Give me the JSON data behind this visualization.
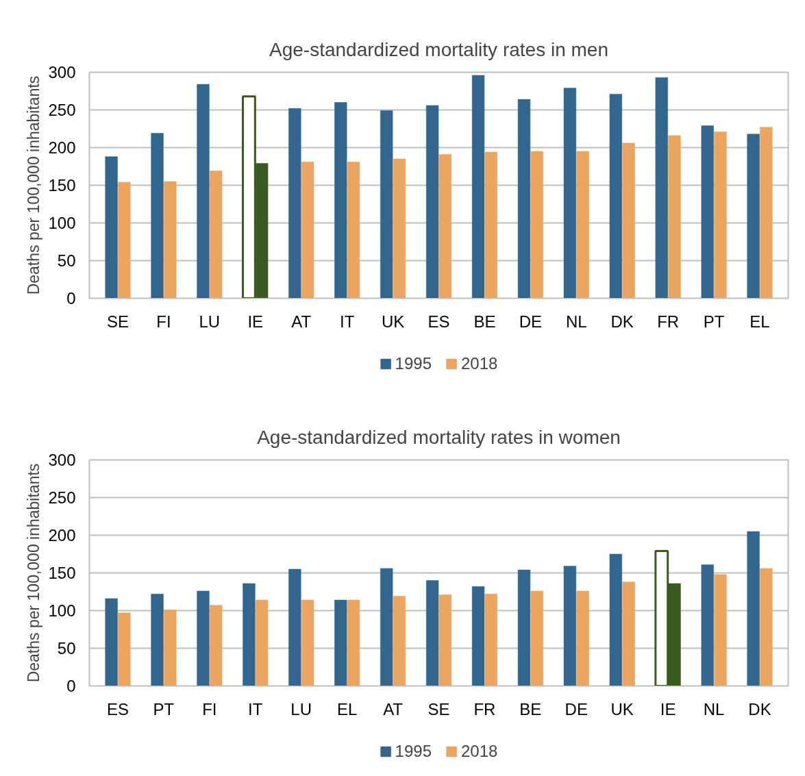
{
  "chart_data": [
    {
      "type": "bar",
      "title": "Age-standardized mortality rates in men",
      "ylabel": "Deaths per 100,000 inhabitants",
      "categories": [
        "SE",
        "FI",
        "LU",
        "IE",
        "AT",
        "IT",
        "UK",
        "ES",
        "BE",
        "DE",
        "NL",
        "DK",
        "FR",
        "PT",
        "EL"
      ],
      "series": [
        {
          "name": "1995",
          "colors": [
            "#31668f",
            "#31668f",
            "#31668f",
            "#ffffff",
            "#31668f",
            "#31668f",
            "#31668f",
            "#31668f",
            "#31668f",
            "#31668f",
            "#31668f",
            "#31668f",
            "#31668f",
            "#31668f",
            "#31668f"
          ],
          "values": [
            188,
            219,
            284,
            268,
            252,
            260,
            249,
            256,
            296,
            264,
            279,
            271,
            293,
            229,
            218
          ]
        },
        {
          "name": "2018",
          "colors": [
            "#eba55e",
            "#eba55e",
            "#eba55e",
            "#3b5a22",
            "#eba55e",
            "#eba55e",
            "#eba55e",
            "#eba55e",
            "#eba55e",
            "#eba55e",
            "#eba55e",
            "#eba55e",
            "#eba55e",
            "#eba55e",
            "#eba55e"
          ],
          "values": [
            154,
            155,
            169,
            179,
            181,
            181,
            185,
            191,
            194,
            195,
            195,
            206,
            216,
            221,
            227
          ]
        }
      ],
      "ylim": [
        0,
        300
      ],
      "yticks": [
        0,
        50,
        100,
        150,
        200,
        250,
        300
      ],
      "grid": "y",
      "legend": "bottom"
    },
    {
      "type": "bar",
      "title": "Age-standardized mortality rates in women",
      "ylabel": "Deaths per 100,000 inhabitants",
      "categories": [
        "ES",
        "PT",
        "FI",
        "IT",
        "LU",
        "EL",
        "AT",
        "SE",
        "FR",
        "BE",
        "DE",
        "UK",
        "IE",
        "NL",
        "DK"
      ],
      "series": [
        {
          "name": "1995",
          "colors": [
            "#31668f",
            "#31668f",
            "#31668f",
            "#31668f",
            "#31668f",
            "#31668f",
            "#31668f",
            "#31668f",
            "#31668f",
            "#31668f",
            "#31668f",
            "#31668f",
            "#ffffff",
            "#31668f",
            "#31668f"
          ],
          "values": [
            116,
            122,
            126,
            136,
            155,
            114,
            156,
            140,
            132,
            154,
            159,
            175,
            179,
            161,
            205
          ]
        },
        {
          "name": "2018",
          "colors": [
            "#eba55e",
            "#eba55e",
            "#eba55e",
            "#eba55e",
            "#eba55e",
            "#eba55e",
            "#eba55e",
            "#eba55e",
            "#eba55e",
            "#eba55e",
            "#eba55e",
            "#eba55e",
            "#3b5a22",
            "#eba55e",
            "#eba55e"
          ],
          "values": [
            97,
            101,
            107,
            114,
            114,
            114,
            119,
            121,
            122,
            126,
            126,
            138,
            136,
            148,
            156
          ]
        }
      ],
      "ylim": [
        0,
        300
      ],
      "yticks": [
        0,
        50,
        100,
        150,
        200,
        250,
        300
      ],
      "grid": "y",
      "legend": "bottom"
    }
  ]
}
